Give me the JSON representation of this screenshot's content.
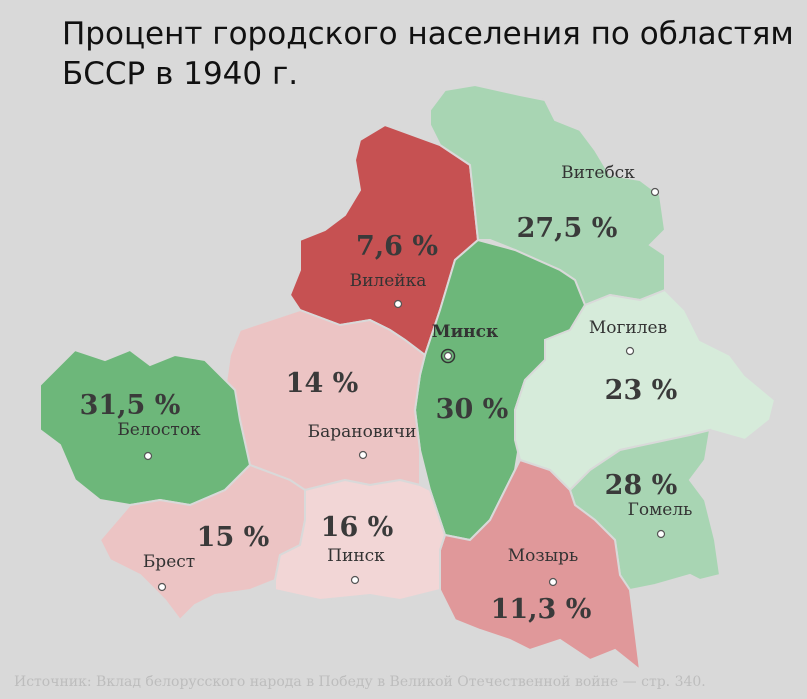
{
  "title": [
    "Процент городского населения по областям",
    "БССР в 1940 г."
  ],
  "regions": [
    {
      "name": "Вилейка",
      "value": 7.6,
      "value_label": "7,6 %",
      "color": "#c65152"
    },
    {
      "name": "Витебск",
      "value": 27.5,
      "value_label": "27,5 %",
      "color": "#a8d5b3"
    },
    {
      "name": "Минск",
      "value": 30,
      "value_label": "30 %",
      "color": "#6db77a"
    },
    {
      "name": "Могилев",
      "value": 23,
      "value_label": "23 %",
      "color": "#d6ebda"
    },
    {
      "name": "Гомель",
      "value": 28,
      "value_label": "28 %",
      "color": "#a8d5b3"
    },
    {
      "name": "Мозырь",
      "value": 11.3,
      "value_label": "11,3 %",
      "color": "#e0989a"
    },
    {
      "name": "Барановичи",
      "value": 14,
      "value_label": "14 %",
      "color": "#ecc4c4"
    },
    {
      "name": "Белосток",
      "value": 31.5,
      "value_label": "31,5 %",
      "color": "#6db77a"
    },
    {
      "name": "Брест",
      "value": 15,
      "value_label": "15 %",
      "color": "#ecc4c4"
    },
    {
      "name": "Пинск",
      "value": 16,
      "value_label": "16 %",
      "color": "#f2d6d6"
    }
  ],
  "source": "Источник: Вклад белорусского народа в Победу в Великой Отечественной войне — стр. 340."
}
